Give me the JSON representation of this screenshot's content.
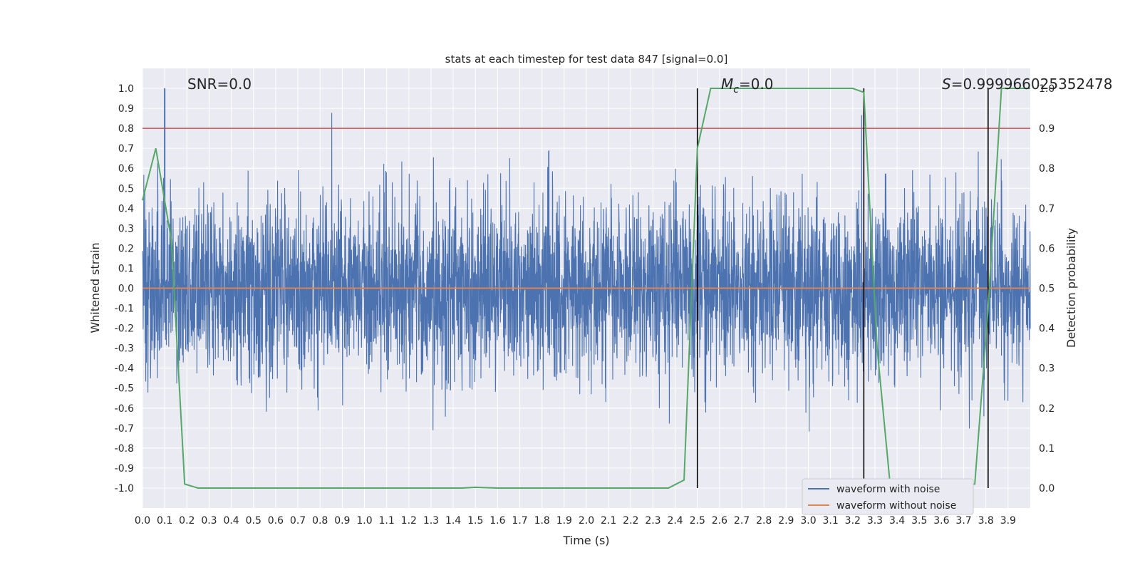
{
  "chart_data": {
    "type": "line",
    "title": "stats at each timestep for test data 847 [signal=0.0]",
    "xlabel": "Time (s)",
    "ylabel_left": "Whitened strain",
    "ylabel_right": "Detection probability",
    "xlim": [
      0.0,
      4.0
    ],
    "ylim_left": [
      -1.1,
      1.1
    ],
    "ylim_right": [
      -0.05,
      1.05
    ],
    "x_ticks": [
      "0.0",
      "0.1",
      "0.2",
      "0.3",
      "0.4",
      "0.5",
      "0.6",
      "0.7",
      "0.8",
      "0.9",
      "1.0",
      "1.1",
      "1.2",
      "1.3",
      "1.4",
      "1.5",
      "1.6",
      "1.7",
      "1.8",
      "1.9",
      "2.0",
      "2.1",
      "2.2",
      "2.3",
      "2.4",
      "2.5",
      "2.6",
      "2.7",
      "2.8",
      "2.9",
      "3.0",
      "3.1",
      "3.2",
      "3.3",
      "3.4",
      "3.5",
      "3.6",
      "3.7",
      "3.8",
      "3.9"
    ],
    "y_ticks_left": [
      "1.0",
      "0.9",
      "0.8",
      "0.7",
      "0.6",
      "0.5",
      "0.4",
      "0.3",
      "0.2",
      "0.1",
      "0.0",
      "-0.1",
      "-0.2",
      "-0.3",
      "-0.4",
      "-0.5",
      "-0.6",
      "-0.7",
      "-0.8",
      "-0.9",
      "-1.0"
    ],
    "y_ticks_right": [
      "1.0",
      "0.9",
      "0.8",
      "0.7",
      "0.6",
      "0.5",
      "0.4",
      "0.3",
      "0.2",
      "0.1",
      "0.0"
    ],
    "annotations": {
      "snr": "SNR=0.0",
      "mc_symbol": "M",
      "mc_sub": "c",
      "mc_value": "=0.0",
      "s_symbol": "S",
      "s_value": "=0.999966025352478"
    },
    "threshold_right": 0.9,
    "vertical_lines_x": [
      2.5,
      3.25,
      3.81
    ],
    "series": [
      {
        "name": "waveform with noise",
        "axis": "left",
        "color": "#4c72b0",
        "amplitude_std": 0.22,
        "peak_value": 1.0,
        "note": "dense whitened noise, roughly within -0.95..1.0"
      },
      {
        "name": "waveform without noise",
        "axis": "left",
        "color": "#dd8452",
        "values_constant": 0.0
      },
      {
        "name": "detection probability",
        "axis": "right",
        "color": "#55a868",
        "x": [
          0.0,
          0.06,
          0.13,
          0.19,
          0.25,
          0.5,
          1.0,
          1.44,
          1.5,
          1.6,
          2.0,
          2.37,
          2.44,
          2.5,
          2.56,
          3.0,
          3.2,
          3.25,
          3.31,
          3.37,
          3.44,
          3.75,
          3.81,
          3.87,
          4.0
        ],
        "y": [
          0.72,
          0.85,
          0.62,
          0.01,
          0.0,
          0.0,
          0.0,
          0.0,
          0.002,
          0.0,
          0.0,
          0.0,
          0.02,
          0.85,
          1.0,
          1.0,
          1.0,
          0.99,
          0.35,
          0.0,
          0.0,
          0.01,
          0.45,
          1.0,
          1.0
        ]
      }
    ],
    "legend": {
      "placement": "bottom-right",
      "entries": [
        {
          "label": "waveform with noise",
          "color": "#4c72b0"
        },
        {
          "label": "waveform without noise",
          "color": "#dd8452"
        }
      ]
    },
    "colors": {
      "plot_background": "#eaeaf2",
      "grid": "#ffffff",
      "threshold": "#c44e52",
      "vline": "#000000",
      "text": "#262626"
    }
  }
}
